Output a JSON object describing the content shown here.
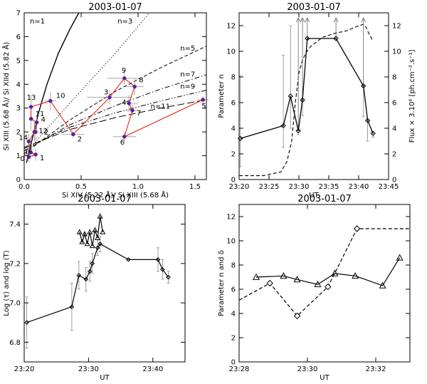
{
  "chart_data": [
    {
      "type": "scatter",
      "title": "2003-01-07",
      "xlabel": "Si XIV (5.22 Å)/ Si XIII (5.68 Å)",
      "ylabel": "Si XIII (5.68 Å)/ Si XIId (5.82 Å)",
      "xlim": [
        0,
        1.6
      ],
      "ylim": [
        0,
        7
      ],
      "xticks": [
        0.0,
        0.5,
        1.0,
        1.5
      ],
      "xtick_labels": [
        "0.0",
        "0.5",
        "1.0",
        "1.5"
      ],
      "yticks": [
        0,
        1,
        2,
        3,
        4,
        5,
        6,
        7
      ],
      "ytick_labels": [
        "0",
        "1",
        "2",
        "3",
        "4",
        "5",
        "6",
        "7"
      ],
      "n_curves": [
        {
          "label": "n=1",
          "style": "solid",
          "points": [
            [
              0.02,
              0.7
            ],
            [
              0.06,
              1.5
            ],
            [
              0.12,
              2.7
            ],
            [
              0.2,
              4.0
            ],
            [
              0.3,
              5.3
            ],
            [
              0.4,
              6.3
            ],
            [
              0.48,
              7.0
            ]
          ]
        },
        {
          "label": "n=3",
          "style": "dotted",
          "points": [
            [
              0.0,
              1.05
            ],
            [
              0.4,
              3.2
            ],
            [
              0.8,
              5.3
            ],
            [
              1.1,
              7.0
            ]
          ]
        },
        {
          "label": "n=5",
          "style": "dashed",
          "points": [
            [
              0.0,
              1.1
            ],
            [
              0.4,
              2.5
            ],
            [
              0.8,
              3.7
            ],
            [
              1.2,
              4.7
            ],
            [
              1.6,
              5.6
            ]
          ]
        },
        {
          "label": "n=7",
          "style": "dashdot",
          "points": [
            [
              0.0,
              1.2
            ],
            [
              0.4,
              2.3
            ],
            [
              0.8,
              3.1
            ],
            [
              1.2,
              3.8
            ],
            [
              1.6,
              4.4
            ]
          ]
        },
        {
          "label": "n=9",
          "style": "dashdotdot",
          "points": [
            [
              0.0,
              1.3
            ],
            [
              0.4,
              2.2
            ],
            [
              0.8,
              2.8
            ],
            [
              1.2,
              3.3
            ],
            [
              1.6,
              3.75
            ]
          ]
        },
        {
          "label": "n=11",
          "style": "longdash",
          "points": [
            [
              0.0,
              1.35
            ],
            [
              0.4,
              2.1
            ],
            [
              0.8,
              2.6
            ],
            [
              1.2,
              3.0
            ],
            [
              1.6,
              3.35
            ]
          ]
        }
      ],
      "points": [
        {
          "label": "0",
          "x": 0.04,
          "y": 0.95,
          "xerr": 0.01,
          "yerr": 0.2
        },
        {
          "label": "1",
          "x": 0.1,
          "y": 1.05,
          "xerr": 0.02,
          "yerr": 0.25
        },
        {
          "label": "15",
          "x": 0.05,
          "y": 1.15,
          "xerr": 0.02,
          "yerr": 0.3
        },
        {
          "label": "14",
          "x": 0.04,
          "y": 1.6,
          "xerr": 0.01,
          "yerr": 0.3
        },
        {
          "label": "12",
          "x": 0.09,
          "y": 2.0,
          "xerr": 0.02,
          "yerr": 0.4
        },
        {
          "label": "2",
          "x": 0.1,
          "y": 2.0,
          "xerr": 0.02,
          "yerr": 0.35
        },
        {
          "label": "4",
          "x": 0.11,
          "y": 2.4,
          "xerr": 0.02,
          "yerr": 0.3
        },
        {
          "label": "11",
          "x": 0.06,
          "y": 2.55,
          "xerr": 0.02,
          "yerr": 0.5
        },
        {
          "label": "13",
          "x": 0.06,
          "y": 3.05,
          "xerr": 0.02,
          "yerr": 0.5
        },
        {
          "label": "10",
          "x": 0.23,
          "y": 3.3,
          "xerr": 0.05,
          "yerr": 0.4
        },
        {
          "label": "2",
          "x": 0.43,
          "y": 1.9,
          "xerr": 0.1,
          "yerr": 0.15
        },
        {
          "label": "3",
          "x": 0.75,
          "y": 3.45,
          "xerr": 0.2,
          "yerr": 0.3
        },
        {
          "label": "9",
          "x": 0.88,
          "y": 4.25,
          "xerr": 0.15,
          "yerr": 0.3
        },
        {
          "label": "8",
          "x": 0.97,
          "y": 3.9,
          "xerr": 0.08,
          "yerr": 0.35
        },
        {
          "label": "4",
          "x": 0.92,
          "y": 3.2,
          "xerr": 0.08,
          "yerr": 0.35
        },
        {
          "label": "7",
          "x": 0.95,
          "y": 2.9,
          "xerr": 0.05,
          "yerr": 0.25
        },
        {
          "label": "6",
          "x": 0.88,
          "y": 1.8,
          "xerr": 0.1,
          "yerr": 0.2
        },
        {
          "label": "5",
          "x": 1.57,
          "y": 3.35,
          "xerr": 0.05,
          "yerr": 0.15
        }
      ],
      "track_order": [
        0,
        1,
        2,
        3,
        4,
        5,
        6,
        7,
        8,
        9,
        10,
        11,
        12,
        13,
        14,
        15,
        16,
        17
      ]
    },
    {
      "type": "line",
      "title": "2003-01-07",
      "xlabel": "UT",
      "ylabel": "Parameter n",
      "ylabel_right": "Flux × 3.10⁶ [ph.cm⁻².s⁻¹]",
      "xlim": [
        0,
        25
      ],
      "ylim": [
        0,
        13
      ],
      "xticks": [
        0,
        5,
        10,
        15,
        20,
        25
      ],
      "xtick_labels": [
        "23:20",
        "23:25",
        "23:30",
        "23:35",
        "23:40",
        "23:45"
      ],
      "yticks": [
        0,
        2,
        4,
        6,
        8,
        10,
        12
      ],
      "ytick_labels": [
        "0",
        "2",
        "4",
        "6",
        "8",
        "10",
        "12"
      ],
      "series": [
        {
          "name": "Parameter n",
          "style": "solid-diamond",
          "x": [
            0.2,
            7.4,
            8.6,
            9.9,
            10.6,
            11.4,
            16.2,
            20.8,
            21.5,
            22.4
          ],
          "y": [
            3.2,
            4.2,
            6.5,
            3.8,
            6.2,
            11.0,
            11.0,
            7.3,
            4.6,
            3.6
          ],
          "err_lo": [
            2.2,
            1.7,
            2.5,
            0.3,
            1.2,
            0.0,
            0.0,
            2.4,
            1.6,
            0.3
          ],
          "err_hi": [
            4.9,
            5.5,
            5.5,
            0.0,
            0.0,
            0.0,
            0.0,
            0.0,
            0.0,
            0.0
          ],
          "upper_arrow_to": [
            null,
            null,
            null,
            12.6,
            12.6,
            12.6,
            12.6,
            12.6,
            null,
            null
          ]
        },
        {
          "name": "Flux",
          "style": "dashed",
          "x": [
            0,
            4,
            7,
            8,
            8.8,
            9.4,
            10,
            10.6,
            11.2,
            12,
            14,
            16,
            18,
            19,
            20,
            20.8,
            21.2,
            21.8,
            22.4
          ],
          "y": [
            0.3,
            0.3,
            0.6,
            1.4,
            3.0,
            6.0,
            8.3,
            9.3,
            9.9,
            10.4,
            11.1,
            11.4,
            11.6,
            11.8,
            12.0,
            12.1,
            11.9,
            11.3,
            10.8
          ]
        }
      ]
    },
    {
      "type": "line",
      "title": "2003-01-07",
      "xlabel": "UT",
      "ylabel": "Log (τ) and log (T)",
      "xlim": [
        0,
        25
      ],
      "ylim": [
        6.7,
        7.5
      ],
      "xticks": [
        0,
        10,
        20
      ],
      "xtick_labels": [
        "23:20",
        "23:30",
        "23:40"
      ],
      "yticks": [
        6.8,
        7.0,
        7.2,
        7.4
      ],
      "ytick_labels": [
        "6.8",
        "7.0",
        "7.2",
        "7.4"
      ],
      "series": [
        {
          "name": "log (τ)",
          "style": "solid-diamond",
          "x": [
            0.4,
            7.4,
            8.5,
            9.6,
            10.2,
            10.6,
            11.4,
            11.8,
            16.2,
            20.8,
            21.5,
            22.4
          ],
          "y": [
            6.9,
            6.98,
            7.14,
            7.12,
            7.16,
            7.2,
            7.28,
            7.3,
            7.22,
            7.22,
            7.17,
            7.13
          ],
          "err": [
            0.13,
            0.12,
            0.07,
            0.06,
            0.05,
            0.05,
            0.04,
            0.04,
            0.0,
            0.06,
            0.05,
            0.03
          ]
        },
        {
          "name": "log (T)",
          "style": "solid-triangle",
          "x": [
            8.6,
            9.0,
            9.4,
            9.8,
            10.2,
            10.6,
            11.0,
            11.4,
            11.8,
            12.2
          ],
          "y": [
            7.36,
            7.31,
            7.35,
            7.3,
            7.36,
            7.29,
            7.37,
            7.33,
            7.44,
            7.36
          ]
        }
      ]
    },
    {
      "type": "line",
      "title": "2003-01-07",
      "xlabel": "UT",
      "ylabel": "Parameter n and δ",
      "xlim": [
        0,
        5
      ],
      "ylim": [
        0,
        13
      ],
      "xticks": [
        0,
        2,
        4
      ],
      "xtick_labels": [
        "23:28",
        "23:30",
        "23:32"
      ],
      "yticks": [
        0,
        2,
        4,
        6,
        8,
        10,
        12
      ],
      "ytick_labels": [
        "0",
        "2",
        "4",
        "6",
        "8",
        "10",
        "12"
      ],
      "series": [
        {
          "name": "δ",
          "style": "solid-triangle",
          "x": [
            0.5,
            1.3,
            1.7,
            2.3,
            2.8,
            3.4,
            4.2,
            4.7
          ],
          "y": [
            7.0,
            7.1,
            6.8,
            6.4,
            7.3,
            7.1,
            6.3,
            8.6
          ]
        },
        {
          "name": "Parameter n",
          "style": "dashed-diamond",
          "x": [
            0.0,
            0.9,
            1.7,
            2.6,
            3.45,
            5.0
          ],
          "y": [
            5.1,
            6.5,
            3.8,
            6.2,
            11.0,
            11.0
          ]
        }
      ]
    }
  ]
}
